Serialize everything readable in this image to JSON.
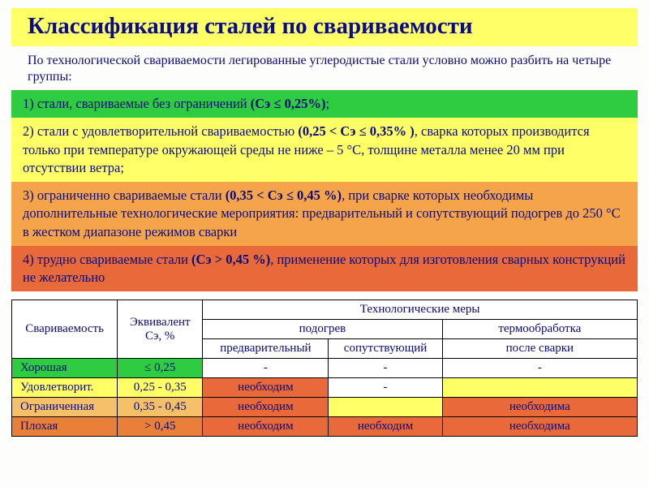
{
  "title": "Классификация сталей по свариваемости",
  "intro": "По технологической свариваемости легированные углеродистые стали условно можно разбить на четыре группы:",
  "bands": {
    "g1": {
      "num": "1)",
      "text": " стали, свариваемые без ограничений ",
      "bold": "(Cэ ≤ 0,25%)",
      "tail": ";"
    },
    "g2": {
      "num": "2)",
      "lead": "  стали с удовлетворительной свариваемостью ",
      "bold": "(0,25 < Cэ ≤ 0,35% )",
      "tail": ", сварка которых производится только при температуре окружающей среды не ниже       – 5 °С, толщине металла менее 20 мм при отсутствии ветра;"
    },
    "g3": {
      "num": "3)",
      "lead": "  ограниченно свариваемые стали ",
      "bold": "(0,35 < Cэ ≤ 0,45 %)",
      "tail": ", при сварке которых необходимы дополнительные технологические мероприятия: предварительный и сопутствующий подогрев до 250 °С в жестком диапазоне режимов сварки"
    },
    "g4": {
      "num": "4)",
      "lead": "  трудно свариваемые стали ",
      "bold": "(Cэ > 0,45 %)",
      "tail": ", применение которых для изготовления сварных конструкций не желательно"
    }
  },
  "table": {
    "headers": {
      "weld": "Свариваемость",
      "ce": "Эквивалент Cэ, %",
      "tech": "Технологические меры",
      "podogrev": "подогрев",
      "termo": "термообработка",
      "pre": "предварительный",
      "soput": "сопутствующий",
      "post": "после сварки"
    },
    "rows": [
      {
        "weld": "Хорошая",
        "ce": "≤ 0,25",
        "pre": "-",
        "soput": "-",
        "post": "-"
      },
      {
        "weld": "Удовлетворит.",
        "ce": "0,25 - 0,35",
        "pre": "необходим",
        "soput": "-",
        "post": ""
      },
      {
        "weld": "Ограниченная",
        "ce": "0,35 - 0,45",
        "pre": "необходим",
        "soput": "",
        "post": "необходима"
      },
      {
        "weld": "Плохая",
        "ce": "> 0,45",
        "pre": "необходим",
        "soput": "необходим",
        "post": "необходима"
      }
    ]
  },
  "colors": {
    "green": "#2ecc40",
    "yellow": "#ffff66",
    "orange_light": "#f5c06a",
    "orange_dark": "#e8803a",
    "red": "#e86a3a",
    "text": "#0a0a7a"
  }
}
